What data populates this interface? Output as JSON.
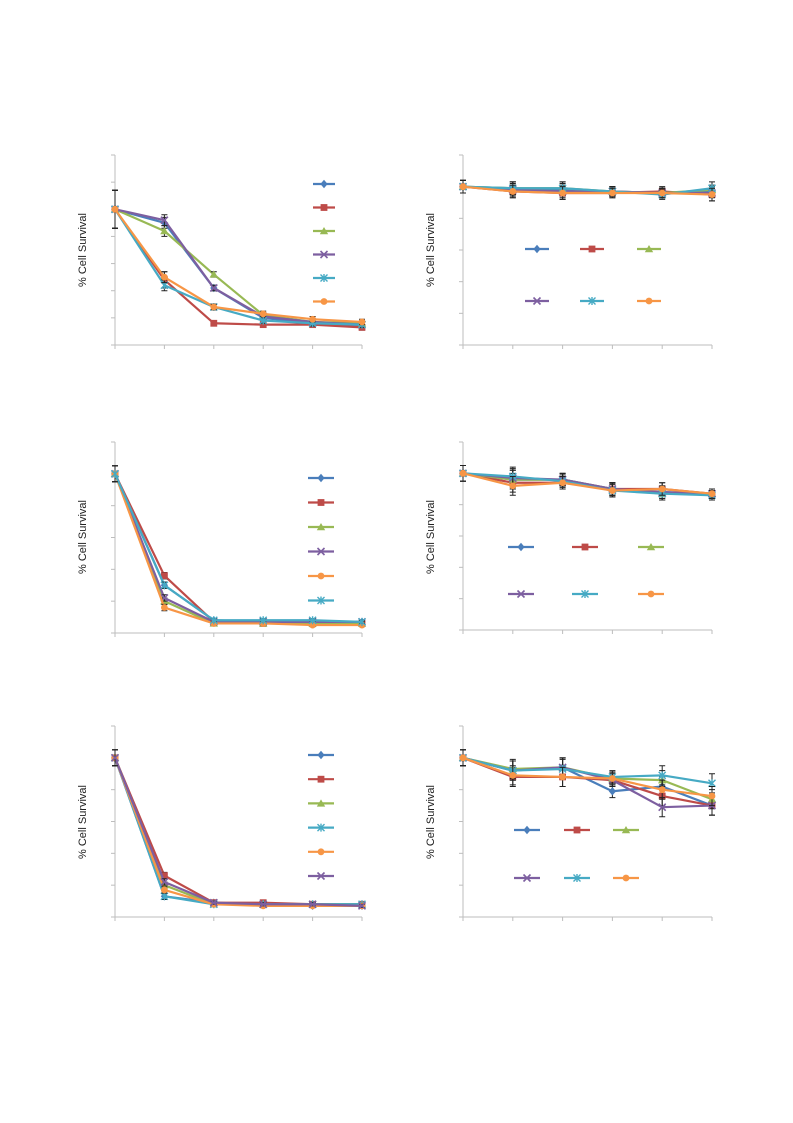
{
  "chart_data": [
    {
      "id": "c1",
      "type": "line",
      "ylabel": "% Cell Survival",
      "xlabel": "",
      "title": "",
      "x": [
        0,
        1,
        2,
        3,
        4,
        5
      ],
      "ylim": [
        0,
        7
      ],
      "grid": false,
      "legend_placement": "right",
      "series": [
        {
          "marker": "diamond",
          "color": "#4a7ebb",
          "values": [
            5.0,
            4.5,
            2.1,
            1.0,
            0.8,
            0.7
          ],
          "err": [
            0.7,
            0.2,
            0.1,
            0.1,
            0.1,
            0.1
          ]
        },
        {
          "marker": "square",
          "color": "#be4b48",
          "values": [
            5.0,
            2.4,
            0.8,
            0.75,
            0.75,
            0.65
          ],
          "err": [
            0.7,
            0.3,
            0.1,
            0.1,
            0.1,
            0.1
          ]
        },
        {
          "marker": "triangle",
          "color": "#98b954",
          "values": [
            5.0,
            4.2,
            2.6,
            1.1,
            0.85,
            0.8
          ],
          "err": [
            0.7,
            0.2,
            0.1,
            0.1,
            0.1,
            0.1
          ]
        },
        {
          "marker": "x",
          "color": "#7d5fa0",
          "values": [
            5.0,
            4.6,
            2.1,
            1.05,
            0.85,
            0.75
          ],
          "err": [
            0.7,
            0.2,
            0.1,
            0.1,
            0.1,
            0.1
          ]
        },
        {
          "marker": "star",
          "color": "#46aac4",
          "values": [
            5.0,
            2.2,
            1.4,
            0.9,
            0.8,
            0.75
          ],
          "err": [
            0.7,
            0.2,
            0.1,
            0.1,
            0.1,
            0.1
          ]
        },
        {
          "marker": "circle",
          "color": "#f79646",
          "values": [
            5.0,
            2.5,
            1.4,
            1.15,
            0.95,
            0.85
          ],
          "err": [
            0.7,
            0.2,
            0.1,
            0.1,
            0.1,
            0.1
          ]
        }
      ]
    },
    {
      "id": "c2",
      "type": "line",
      "ylabel": "% Cell Survival",
      "xlabel": "",
      "title": "",
      "x": [
        0,
        1,
        2,
        3,
        4,
        5
      ],
      "ylim": [
        0,
        6
      ],
      "grid": false,
      "legend_placement": "center",
      "series": [
        {
          "marker": "diamond",
          "color": "#4a7ebb",
          "values": [
            5.0,
            4.95,
            4.9,
            4.85,
            4.8,
            4.85
          ],
          "err": [
            0.2,
            0.2,
            0.2,
            0.15,
            0.15,
            0.15
          ]
        },
        {
          "marker": "square",
          "color": "#be4b48",
          "values": [
            5.0,
            4.85,
            4.8,
            4.8,
            4.85,
            4.75
          ],
          "err": [
            0.2,
            0.2,
            0.2,
            0.15,
            0.15,
            0.2
          ]
        },
        {
          "marker": "triangle",
          "color": "#98b954",
          "values": [
            5.0,
            4.95,
            4.95,
            4.85,
            4.8,
            4.9
          ],
          "err": [
            0.2,
            0.2,
            0.2,
            0.15,
            0.15,
            0.15
          ]
        },
        {
          "marker": "x",
          "color": "#7d5fa0",
          "values": [
            5.0,
            4.9,
            4.85,
            4.85,
            4.8,
            4.8
          ],
          "err": [
            0.2,
            0.2,
            0.2,
            0.15,
            0.15,
            0.15
          ]
        },
        {
          "marker": "star",
          "color": "#46aac4",
          "values": [
            5.0,
            4.95,
            4.95,
            4.85,
            4.75,
            4.95
          ],
          "err": [
            0.2,
            0.2,
            0.2,
            0.15,
            0.15,
            0.2
          ]
        },
        {
          "marker": "circle",
          "color": "#f79646",
          "values": [
            5.0,
            4.85,
            4.8,
            4.8,
            4.8,
            4.75
          ],
          "err": [
            0.2,
            0.2,
            0.2,
            0.15,
            0.15,
            0.2
          ]
        }
      ]
    },
    {
      "id": "c3",
      "type": "line",
      "ylabel": "% Cell Survival",
      "xlabel": "",
      "title": "",
      "x": [
        0,
        1,
        2,
        3,
        4,
        5
      ],
      "ylim": [
        0,
        6
      ],
      "grid": false,
      "legend_placement": "right",
      "series": [
        {
          "marker": "diamond",
          "color": "#4a7ebb",
          "values": [
            5.0,
            1.5,
            0.4,
            0.35,
            0.35,
            0.35
          ],
          "err": [
            0.25,
            0.1,
            0.05,
            0.05,
            0.05,
            0.05
          ]
        },
        {
          "marker": "square",
          "color": "#be4b48",
          "values": [
            5.0,
            1.8,
            0.35,
            0.3,
            0.3,
            0.3
          ],
          "err": [
            0.25,
            0.1,
            0.05,
            0.05,
            0.05,
            0.05
          ]
        },
        {
          "marker": "triangle",
          "color": "#98b954",
          "values": [
            5.0,
            1.0,
            0.3,
            0.3,
            0.3,
            0.3
          ],
          "err": [
            0.25,
            0.1,
            0.05,
            0.05,
            0.05,
            0.05
          ]
        },
        {
          "marker": "x",
          "color": "#7d5fa0",
          "values": [
            5.0,
            1.1,
            0.35,
            0.35,
            0.35,
            0.35
          ],
          "err": [
            0.25,
            0.1,
            0.05,
            0.05,
            0.05,
            0.05
          ]
        },
        {
          "marker": "circle",
          "color": "#f79646",
          "values": [
            5.0,
            0.8,
            0.3,
            0.3,
            0.25,
            0.25
          ],
          "err": [
            0.25,
            0.1,
            0.05,
            0.05,
            0.05,
            0.05
          ]
        },
        {
          "marker": "star",
          "color": "#46aac4",
          "values": [
            5.0,
            1.5,
            0.4,
            0.4,
            0.4,
            0.35
          ],
          "err": [
            0.25,
            0.1,
            0.05,
            0.05,
            0.05,
            0.05
          ]
        }
      ]
    },
    {
      "id": "c4",
      "type": "line",
      "ylabel": "% Cell Survival",
      "xlabel": "",
      "title": "",
      "x": [
        0,
        1,
        2,
        3,
        4,
        5
      ],
      "ylim": [
        0,
        6
      ],
      "grid": false,
      "legend_placement": "center",
      "series": [
        {
          "marker": "diamond",
          "color": "#4a7ebb",
          "values": [
            5.0,
            4.8,
            4.8,
            4.5,
            4.4,
            4.35
          ],
          "err": [
            0.25,
            0.3,
            0.2,
            0.2,
            0.2,
            0.15
          ]
        },
        {
          "marker": "square",
          "color": "#be4b48",
          "values": [
            5.0,
            4.7,
            4.7,
            4.5,
            4.5,
            4.35
          ],
          "err": [
            0.25,
            0.3,
            0.2,
            0.2,
            0.2,
            0.15
          ]
        },
        {
          "marker": "triangle",
          "color": "#98b954",
          "values": [
            5.0,
            4.8,
            4.8,
            4.5,
            4.35,
            4.35
          ],
          "err": [
            0.25,
            0.3,
            0.2,
            0.2,
            0.2,
            0.15
          ]
        },
        {
          "marker": "x",
          "color": "#7d5fa0",
          "values": [
            5.0,
            4.85,
            4.8,
            4.5,
            4.4,
            4.35
          ],
          "err": [
            0.25,
            0.3,
            0.2,
            0.2,
            0.2,
            0.15
          ]
        },
        {
          "marker": "star",
          "color": "#46aac4",
          "values": [
            5.0,
            4.9,
            4.75,
            4.45,
            4.35,
            4.3
          ],
          "err": [
            0.25,
            0.3,
            0.2,
            0.2,
            0.2,
            0.15
          ]
        },
        {
          "marker": "circle",
          "color": "#f79646",
          "values": [
            5.0,
            4.6,
            4.7,
            4.45,
            4.5,
            4.35
          ],
          "err": [
            0.25,
            0.3,
            0.2,
            0.2,
            0.2,
            0.15
          ]
        }
      ]
    },
    {
      "id": "c5",
      "type": "line",
      "ylabel": "% Cell Survival",
      "xlabel": "",
      "title": "",
      "x": [
        0,
        1,
        2,
        3,
        4,
        5
      ],
      "ylim": [
        0,
        6
      ],
      "grid": false,
      "legend_placement": "right",
      "series": [
        {
          "marker": "diamond",
          "color": "#4a7ebb",
          "values": [
            5.0,
            0.65,
            0.45,
            0.4,
            0.35,
            0.35
          ],
          "err": [
            0.25,
            0.1,
            0.05,
            0.05,
            0.05,
            0.05
          ]
        },
        {
          "marker": "square",
          "color": "#be4b48",
          "values": [
            5.0,
            1.3,
            0.45,
            0.45,
            0.4,
            0.4
          ],
          "err": [
            0.25,
            0.1,
            0.05,
            0.05,
            0.05,
            0.05
          ]
        },
        {
          "marker": "triangle",
          "color": "#98b954",
          "values": [
            5.0,
            1.0,
            0.4,
            0.4,
            0.4,
            0.4
          ],
          "err": [
            0.25,
            0.1,
            0.05,
            0.05,
            0.05,
            0.05
          ]
        },
        {
          "marker": "star",
          "color": "#46aac4",
          "values": [
            5.0,
            0.65,
            0.4,
            0.4,
            0.4,
            0.4
          ],
          "err": [
            0.25,
            0.1,
            0.05,
            0.05,
            0.05,
            0.05
          ]
        },
        {
          "marker": "circle",
          "color": "#f79646",
          "values": [
            5.0,
            0.85,
            0.4,
            0.35,
            0.35,
            0.35
          ],
          "err": [
            0.25,
            0.1,
            0.05,
            0.05,
            0.05,
            0.05
          ]
        },
        {
          "marker": "x",
          "color": "#7d5fa0",
          "values": [
            5.0,
            1.1,
            0.45,
            0.4,
            0.4,
            0.35
          ],
          "err": [
            0.25,
            0.1,
            0.05,
            0.05,
            0.05,
            0.05
          ]
        }
      ]
    },
    {
      "id": "c6",
      "type": "line",
      "ylabel": "% Cell Survival",
      "xlabel": "",
      "title": "",
      "x": [
        0,
        1,
        2,
        3,
        4,
        5
      ],
      "ylim": [
        0,
        6
      ],
      "grid": false,
      "legend_placement": "center",
      "series": [
        {
          "marker": "diamond",
          "color": "#4a7ebb",
          "values": [
            5.0,
            4.6,
            4.7,
            3.95,
            4.1,
            3.5
          ],
          "err": [
            0.25,
            0.3,
            0.3,
            0.2,
            0.3,
            0.3
          ]
        },
        {
          "marker": "square",
          "color": "#be4b48",
          "values": [
            5.0,
            4.4,
            4.4,
            4.3,
            3.8,
            3.5
          ],
          "err": [
            0.25,
            0.3,
            0.3,
            0.2,
            0.3,
            0.3
          ]
        },
        {
          "marker": "triangle",
          "color": "#98b954",
          "values": [
            5.0,
            4.65,
            4.7,
            4.35,
            4.3,
            3.7
          ],
          "err": [
            0.25,
            0.3,
            0.3,
            0.2,
            0.3,
            0.3
          ]
        },
        {
          "marker": "x",
          "color": "#7d5fa0",
          "values": [
            5.0,
            4.6,
            4.7,
            4.3,
            3.45,
            3.5
          ],
          "err": [
            0.25,
            0.3,
            0.3,
            0.2,
            0.3,
            0.3
          ]
        },
        {
          "marker": "star",
          "color": "#46aac4",
          "values": [
            5.0,
            4.6,
            4.65,
            4.4,
            4.45,
            4.2
          ],
          "err": [
            0.25,
            0.3,
            0.3,
            0.2,
            0.3,
            0.3
          ]
        },
        {
          "marker": "circle",
          "color": "#f79646",
          "values": [
            5.0,
            4.45,
            4.4,
            4.35,
            4.0,
            3.8
          ],
          "err": [
            0.25,
            0.3,
            0.3,
            0.2,
            0.3,
            0.3
          ]
        }
      ]
    }
  ]
}
